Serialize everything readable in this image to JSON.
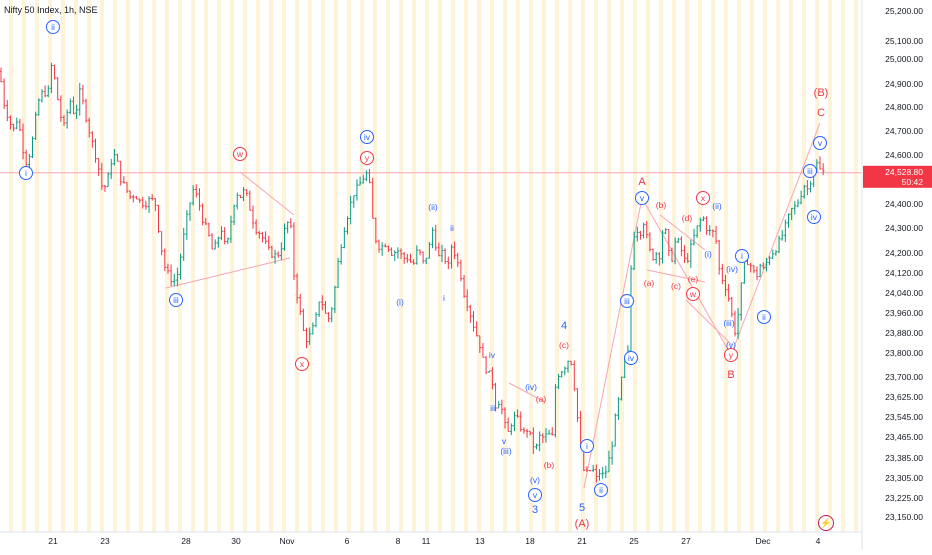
{
  "header": {
    "title": "Nifty 50 Index, 1h, NSE"
  },
  "chart_data": {
    "type": "candlestick",
    "symbol": "Nifty 50 Index",
    "interval": "1h",
    "exchange": "NSE",
    "ylim": [
      23120,
      25240
    ],
    "y_ticks": [
      "25,200.00",
      "25,100.00",
      "25,000.00",
      "24,900.00",
      "24,800.00",
      "24,700.00",
      "24,600.00",
      "24,500.00",
      "24,400.00",
      "24,300.00",
      "24,200.00",
      "24,120.00",
      "24,040.00",
      "23,960.00",
      "23,880.00",
      "23,800.00",
      "23,700.00",
      "23,625.00",
      "23,545.00",
      "23,465.00",
      "23,385.00",
      "23,305.00",
      "23,225.00",
      "23,150.00"
    ],
    "y_tick_values": [
      25200,
      25100,
      25000,
      24900,
      24800,
      24700,
      24600,
      24500,
      24400,
      24300,
      24200,
      24120,
      24040,
      23960,
      23880,
      23800,
      23700,
      23625,
      23545,
      23465,
      23385,
      23305,
      23225,
      23150
    ],
    "x_ticks": [
      "21",
      "23",
      "28",
      "30",
      "Nov",
      "6",
      "8",
      "11",
      "13",
      "18",
      "21",
      "25",
      "27",
      "Dec",
      "4"
    ],
    "current_price": {
      "label": "24,528.80",
      "countdown": "50:42",
      "value": 24528.8
    },
    "colors": {
      "up": "#089981",
      "down": "#f23645",
      "impulse_blue": "#2962ff",
      "corrective_red": "#f23645",
      "session_band": "#fdf3d9",
      "line": "#f7a6ad"
    },
    "price_path": [
      [
        0,
        24950
      ],
      [
        3,
        24830
      ],
      [
        8,
        24760
      ],
      [
        13,
        24700
      ],
      [
        18,
        24760
      ],
      [
        22,
        24640
      ],
      [
        27,
        24560
      ],
      [
        32,
        24650
      ],
      [
        38,
        24820
      ],
      [
        44,
        24880
      ],
      [
        47,
        24830
      ],
      [
        52,
        24990
      ],
      [
        56,
        24880
      ],
      [
        60,
        24770
      ],
      [
        64,
        24720
      ],
      [
        70,
        24830
      ],
      [
        75,
        24760
      ],
      [
        80,
        24870
      ],
      [
        84,
        24800
      ],
      [
        88,
        24720
      ],
      [
        93,
        24640
      ],
      [
        98,
        24560
      ],
      [
        103,
        24450
      ],
      [
        108,
        24510
      ],
      [
        112,
        24590
      ],
      [
        116,
        24600
      ],
      [
        120,
        24510
      ],
      [
        125,
        24470
      ],
      [
        130,
        24430
      ],
      [
        135,
        24440
      ],
      [
        140,
        24410
      ],
      [
        145,
        24400
      ],
      [
        150,
        24420
      ],
      [
        155,
        24410
      ],
      [
        160,
        24250
      ],
      [
        165,
        24140
      ],
      [
        170,
        24100
      ],
      [
        174,
        24090
      ],
      [
        178,
        24120
      ],
      [
        183,
        24250
      ],
      [
        188,
        24370
      ],
      [
        193,
        24460
      ],
      [
        198,
        24420
      ],
      [
        203,
        24330
      ],
      [
        208,
        24280
      ],
      [
        213,
        24200
      ],
      [
        218,
        24260
      ],
      [
        222,
        24300
      ],
      [
        226,
        24200
      ],
      [
        231,
        24330
      ],
      [
        236,
        24450
      ],
      [
        240,
        24430
      ],
      [
        245,
        24460
      ],
      [
        250,
        24380
      ],
      [
        255,
        24300
      ],
      [
        260,
        24280
      ],
      [
        265,
        24240
      ],
      [
        270,
        24200
      ],
      [
        275,
        24190
      ],
      [
        280,
        24200
      ],
      [
        285,
        24300
      ],
      [
        290,
        24340
      ],
      [
        294,
        24110
      ],
      [
        298,
        24010
      ],
      [
        302,
        23920
      ],
      [
        305,
        23850
      ],
      [
        310,
        23870
      ],
      [
        315,
        23920
      ],
      [
        320,
        24030
      ],
      [
        325,
        23960
      ],
      [
        328,
        23930
      ],
      [
        333,
        24000
      ],
      [
        338,
        24160
      ],
      [
        343,
        24280
      ],
      [
        348,
        24360
      ],
      [
        353,
        24440
      ],
      [
        358,
        24470
      ],
      [
        362,
        24500
      ],
      [
        366,
        24530
      ],
      [
        370,
        24470
      ],
      [
        374,
        24270
      ],
      [
        380,
        24220
      ],
      [
        386,
        24240
      ],
      [
        392,
        24200
      ],
      [
        398,
        24210
      ],
      [
        403,
        24180
      ],
      [
        408,
        24180
      ],
      [
        413,
        24150
      ],
      [
        418,
        24220
      ],
      [
        423,
        24160
      ],
      [
        428,
        24200
      ],
      [
        433,
        24300
      ],
      [
        438,
        24180
      ],
      [
        443,
        24200
      ],
      [
        448,
        24140
      ],
      [
        452,
        24240
      ],
      [
        456,
        24180
      ],
      [
        460,
        24130
      ],
      [
        464,
        24040
      ],
      [
        468,
        23990
      ],
      [
        472,
        23930
      ],
      [
        476,
        23880
      ],
      [
        480,
        23830
      ],
      [
        484,
        23750
      ],
      [
        488,
        23720
      ],
      [
        492,
        23690
      ],
      [
        496,
        23580
      ],
      [
        500,
        23620
      ],
      [
        504,
        23520
      ],
      [
        508,
        23480
      ],
      [
        512,
        23530
      ],
      [
        516,
        23550
      ],
      [
        520,
        23510
      ],
      [
        524,
        23480
      ],
      [
        528,
        23500
      ],
      [
        532,
        23440
      ],
      [
        536,
        23420
      ],
      [
        540,
        23470
      ],
      [
        544,
        23460
      ],
      [
        548,
        23480
      ],
      [
        552,
        23450
      ],
      [
        556,
        23700
      ],
      [
        560,
        23720
      ],
      [
        564,
        23740
      ],
      [
        568,
        23770
      ],
      [
        572,
        23760
      ],
      [
        576,
        23600
      ],
      [
        580,
        23440
      ],
      [
        584,
        23330
      ],
      [
        588,
        23320
      ],
      [
        592,
        23350
      ],
      [
        596,
        23300
      ],
      [
        600,
        23330
      ],
      [
        604,
        23310
      ],
      [
        608,
        23360
      ],
      [
        612,
        23440
      ],
      [
        616,
        23560
      ],
      [
        620,
        23640
      ],
      [
        624,
        23760
      ],
      [
        628,
        23800
      ],
      [
        632,
        24250
      ],
      [
        636,
        24300
      ],
      [
        640,
        24280
      ],
      [
        644,
        24330
      ],
      [
        648,
        24230
      ],
      [
        652,
        24180
      ],
      [
        656,
        24200
      ],
      [
        660,
        24190
      ],
      [
        664,
        24340
      ],
      [
        668,
        24200
      ],
      [
        672,
        24180
      ],
      [
        676,
        24260
      ],
      [
        680,
        24230
      ],
      [
        684,
        24170
      ],
      [
        688,
        24180
      ],
      [
        692,
        24240
      ],
      [
        696,
        24290
      ],
      [
        700,
        24330
      ],
      [
        704,
        24340
      ],
      [
        708,
        24280
      ],
      [
        712,
        24290
      ],
      [
        716,
        24250
      ],
      [
        718,
        24150
      ],
      [
        722,
        24100
      ],
      [
        726,
        24060
      ],
      [
        730,
        24000
      ],
      [
        733,
        23920
      ],
      [
        736,
        23870
      ],
      [
        740,
        24030
      ],
      [
        744,
        24150
      ],
      [
        748,
        24170
      ],
      [
        752,
        24140
      ],
      [
        756,
        24100
      ],
      [
        760,
        24150
      ],
      [
        764,
        24130
      ],
      [
        768,
        24180
      ],
      [
        772,
        24200
      ],
      [
        776,
        24220
      ],
      [
        780,
        24250
      ],
      [
        784,
        24290
      ],
      [
        788,
        24340
      ],
      [
        792,
        24380
      ],
      [
        796,
        24390
      ],
      [
        800,
        24430
      ],
      [
        804,
        24480
      ],
      [
        808,
        24460
      ],
      [
        812,
        24520
      ],
      [
        816,
        24570
      ],
      [
        820,
        24540
      ],
      [
        824,
        24530
      ]
    ],
    "wave_labels": [
      {
        "text": "ii",
        "x": 53,
        "y": 27,
        "color": "blue",
        "circled": true
      },
      {
        "text": "i",
        "x": 26,
        "y": 173,
        "color": "blue",
        "circled": true
      },
      {
        "text": "w",
        "x": 240,
        "y": 154,
        "color": "red",
        "circled": true
      },
      {
        "text": "iii",
        "x": 176,
        "y": 300,
        "color": "blue",
        "circled": true
      },
      {
        "text": "x",
        "x": 302,
        "y": 364,
        "color": "red",
        "circled": true
      },
      {
        "text": "iv",
        "x": 367,
        "y": 137,
        "color": "blue",
        "circled": true
      },
      {
        "text": "y",
        "x": 367,
        "y": 158,
        "color": "red",
        "circled": true
      },
      {
        "text": "(ii)",
        "x": 433,
        "y": 207,
        "color": "blue",
        "circled": false
      },
      {
        "text": "ii",
        "x": 452,
        "y": 228,
        "color": "blue",
        "circled": false
      },
      {
        "text": "(i)",
        "x": 400,
        "y": 302,
        "color": "blue",
        "circled": false
      },
      {
        "text": "i",
        "x": 444,
        "y": 298,
        "color": "blue",
        "circled": false
      },
      {
        "text": "iv",
        "x": 492,
        "y": 355,
        "color": "blue",
        "circled": false
      },
      {
        "text": "(iv)",
        "x": 531,
        "y": 387,
        "color": "blue",
        "circled": false
      },
      {
        "text": "(a)",
        "x": 541,
        "y": 399,
        "color": "red",
        "circled": false
      },
      {
        "text": "iii",
        "x": 493,
        "y": 408,
        "color": "blue",
        "circled": false
      },
      {
        "text": "v",
        "x": 504,
        "y": 441,
        "color": "blue",
        "circled": false
      },
      {
        "text": "(iii)",
        "x": 506,
        "y": 451,
        "color": "blue",
        "circled": false
      },
      {
        "text": "(b)",
        "x": 549,
        "y": 465,
        "color": "red",
        "circled": false
      },
      {
        "text": "(v)",
        "x": 535,
        "y": 480,
        "color": "blue",
        "circled": false
      },
      {
        "text": "v",
        "x": 535,
        "y": 495,
        "color": "blue",
        "circled": true
      },
      {
        "text": "3",
        "x": 535,
        "y": 510,
        "color": "blue",
        "circled": false
      },
      {
        "text": "4",
        "x": 564,
        "y": 326,
        "color": "blue",
        "circled": false
      },
      {
        "text": "(c)",
        "x": 564,
        "y": 345,
        "color": "red",
        "circled": false
      },
      {
        "text": "5",
        "x": 582,
        "y": 508,
        "color": "blue",
        "circled": false
      },
      {
        "text": "(A)",
        "x": 582,
        "y": 524,
        "color": "red",
        "circled": false
      },
      {
        "text": "i",
        "x": 587,
        "y": 446,
        "color": "blue",
        "circled": true
      },
      {
        "text": "ii",
        "x": 601,
        "y": 490,
        "color": "blue",
        "circled": true
      },
      {
        "text": "iii",
        "x": 627,
        "y": 301,
        "color": "blue",
        "circled": true
      },
      {
        "text": "iv",
        "x": 631,
        "y": 358,
        "color": "blue",
        "circled": true
      },
      {
        "text": "A",
        "x": 642,
        "y": 182,
        "color": "red",
        "circled": false
      },
      {
        "text": "v",
        "x": 642,
        "y": 198,
        "color": "blue",
        "circled": true
      },
      {
        "text": "(b)",
        "x": 661,
        "y": 205,
        "color": "red",
        "circled": false
      },
      {
        "text": "(d)",
        "x": 687,
        "y": 218,
        "color": "red",
        "circled": false
      },
      {
        "text": "(a)",
        "x": 649,
        "y": 283,
        "color": "red",
        "circled": false
      },
      {
        "text": "(c)",
        "x": 676,
        "y": 286,
        "color": "red",
        "circled": false
      },
      {
        "text": "(e)",
        "x": 693,
        "y": 279,
        "color": "red",
        "circled": false
      },
      {
        "text": "w",
        "x": 693,
        "y": 294,
        "color": "red",
        "circled": true
      },
      {
        "text": "x",
        "x": 703,
        "y": 198,
        "color": "red",
        "circled": true
      },
      {
        "text": "(ii)",
        "x": 717,
        "y": 206,
        "color": "blue",
        "circled": false
      },
      {
        "text": "(i)",
        "x": 708,
        "y": 254,
        "color": "blue",
        "circled": false
      },
      {
        "text": "(iv)",
        "x": 732,
        "y": 269,
        "color": "blue",
        "circled": false
      },
      {
        "text": "(iii)",
        "x": 729,
        "y": 323,
        "color": "blue",
        "circled": false
      },
      {
        "text": "(v)",
        "x": 731,
        "y": 345,
        "color": "blue",
        "circled": false
      },
      {
        "text": "y",
        "x": 731,
        "y": 355,
        "color": "red",
        "circled": true
      },
      {
        "text": "B",
        "x": 731,
        "y": 375,
        "color": "red",
        "circled": false
      },
      {
        "text": "i",
        "x": 742,
        "y": 256,
        "color": "blue",
        "circled": true
      },
      {
        "text": "ii",
        "x": 764,
        "y": 317,
        "color": "blue",
        "circled": true
      },
      {
        "text": "iii",
        "x": 810,
        "y": 171,
        "color": "blue",
        "circled": true
      },
      {
        "text": "iv",
        "x": 814,
        "y": 217,
        "color": "blue",
        "circled": true
      },
      {
        "text": "v",
        "x": 820,
        "y": 143,
        "color": "blue",
        "circled": true
      },
      {
        "text": "(B)",
        "x": 821,
        "y": 93,
        "color": "red",
        "circled": false
      },
      {
        "text": "C",
        "x": 821,
        "y": 113,
        "color": "red",
        "circled": false
      }
    ]
  }
}
